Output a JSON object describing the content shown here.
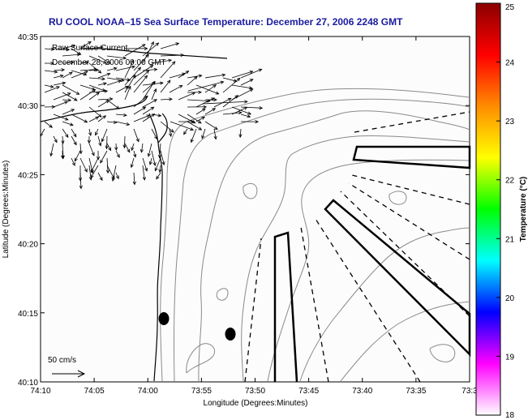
{
  "title": "RU COOL  NOAA–15  Sea Surface Temperature:  December 27, 2006 2248 GMT",
  "current_label_1": "Raw Surface Current,",
  "current_label_2": "December 28, 2006 00:00 GMT",
  "scale_label": "50 cm/s",
  "x_axis": {
    "label": "Longitude (Degrees:Minutes)",
    "ticks": [
      "74:10",
      "74:05",
      "74:00",
      "73:55",
      "73:50",
      "73:45",
      "73:40",
      "73:35",
      "73:3"
    ]
  },
  "y_axis": {
    "label": "Latitude (Degrees:Minutes)",
    "ticks": [
      "40:35",
      "40:30",
      "40:25",
      "40:20",
      "40:15",
      "40:10"
    ]
  },
  "colorbar": {
    "label": "Temperature (°C)",
    "ticks": [
      "25",
      "24",
      "23",
      "22",
      "21",
      "20",
      "19",
      "18"
    ],
    "colors": [
      "#8b0000",
      "#ff0000",
      "#ff8c00",
      "#ffff00",
      "#00ff00",
      "#00ffff",
      "#0000ff",
      "#ff00ff",
      "#ffffff"
    ]
  },
  "colors": {
    "title": "#1a1aa0",
    "annotation": "#1a1aa0",
    "contour": "#8a8a8a",
    "coast": "#000000"
  }
}
